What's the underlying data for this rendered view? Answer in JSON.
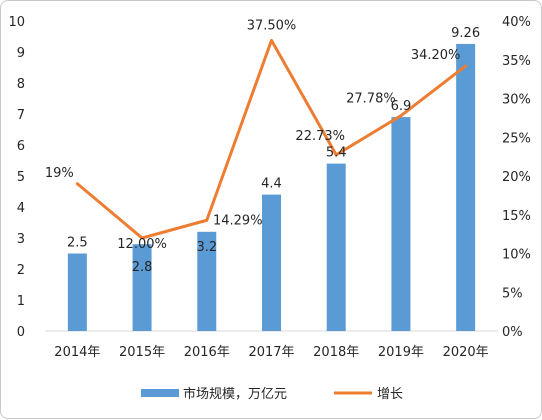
{
  "chart_data": {
    "type": "bar",
    "categories": [
      "2014年",
      "2015年",
      "2016年",
      "2017年",
      "2018年",
      "2019年",
      "2020年"
    ],
    "series": [
      {
        "name": "市场规模，万亿元",
        "kind": "bar",
        "axis": "left",
        "color": "#5b9bd5",
        "values": [
          2.5,
          2.8,
          3.2,
          4.4,
          5.4,
          6.9,
          9.26
        ],
        "labels": [
          "2.5",
          "2.8",
          "3.2",
          "4.4",
          "5.4",
          "6.9",
          "9.26"
        ]
      },
      {
        "name": "增长",
        "kind": "line",
        "axis": "right",
        "color": "#ed7d31",
        "values": [
          19,
          12.0,
          14.29,
          37.5,
          22.73,
          27.78,
          34.2
        ],
        "labels": [
          "19%",
          "12.00%",
          "14.29%",
          "37.50%",
          "22.73%",
          "27.78%",
          "34.20%"
        ]
      }
    ],
    "y_left": {
      "min": 0,
      "max": 10,
      "ticks": [
        "0",
        "1",
        "2",
        "3",
        "4",
        "5",
        "6",
        "7",
        "8",
        "9",
        "10"
      ]
    },
    "y_right": {
      "min": 0,
      "max": 40,
      "ticks": [
        "0%",
        "5%",
        "10%",
        "15%",
        "20%",
        "25%",
        "30%",
        "35%",
        "40%"
      ]
    },
    "grid": false,
    "legend_position": "bottom"
  }
}
